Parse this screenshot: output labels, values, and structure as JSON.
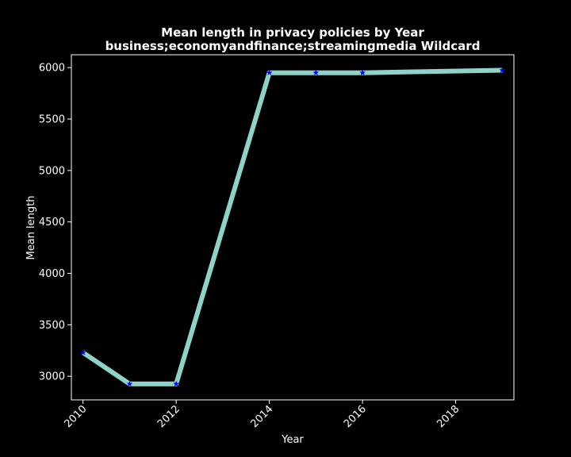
{
  "chart_data": {
    "type": "line",
    "title_line1": "Mean length in privacy policies by Year",
    "title_line2": "business;economyandfinance;streamingmedia Wildcard",
    "xlabel": "Year",
    "ylabel": "Mean length",
    "x_ticks": [
      2010,
      2012,
      2014,
      2016,
      2018
    ],
    "y_ticks": [
      3000,
      3500,
      4000,
      4500,
      5000,
      5500,
      6000
    ],
    "xlim": [
      2009.75,
      2019.25
    ],
    "ylim": [
      2770,
      6125
    ],
    "grid": false,
    "series": [
      {
        "x": [
          2010,
          2011,
          2012,
          2014,
          2015,
          2016,
          2019
        ],
        "y": [
          3230,
          2925,
          2925,
          5950,
          5950,
          5950,
          5975
        ]
      }
    ],
    "colors": {
      "background": "#000000",
      "line": "#8dd3c7",
      "marker": "#0000ff",
      "axes": "#ffffff",
      "text": "#ffffff"
    }
  }
}
